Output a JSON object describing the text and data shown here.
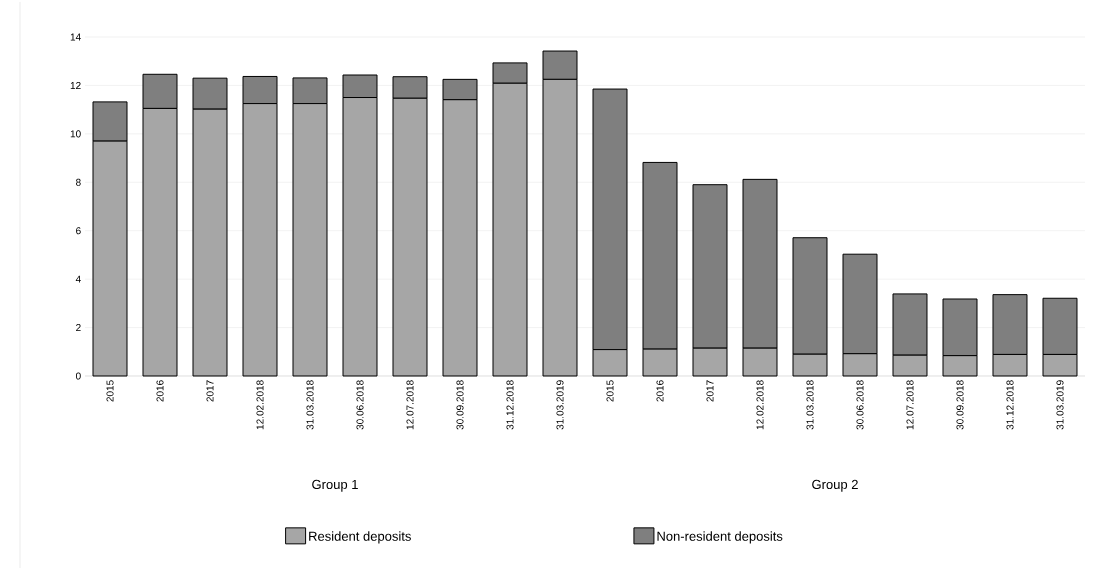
{
  "chart_data": {
    "type": "bar",
    "stacked": true,
    "categories": [
      "2015",
      "2016",
      "2017",
      "12.02.2018",
      "31.03.2018",
      "30.06.2018",
      "12.07.2018",
      "30.09.2018",
      "31.12.2018",
      "31.03.2019",
      "2015",
      "2016",
      "2017",
      "12.02.2018",
      "31.03.2018",
      "30.06.2018",
      "12.07.2018",
      "30.09.2018",
      "31.12.2018",
      "31.03.2019"
    ],
    "series": [
      {
        "name": "Resident deposits",
        "color": "#a6a6a6",
        "values": [
          9.7,
          11.05,
          11.02,
          11.25,
          11.25,
          11.5,
          11.47,
          11.41,
          12.09,
          12.25,
          1.09,
          1.11,
          1.15,
          1.15,
          0.9,
          0.92,
          0.86,
          0.84,
          0.89,
          0.89
        ]
      },
      {
        "name": "Non-resident deposits",
        "color": "#7f7f7f",
        "values": [
          1.62,
          1.41,
          1.28,
          1.12,
          1.06,
          0.93,
          0.89,
          0.84,
          0.84,
          1.17,
          10.76,
          7.71,
          6.75,
          6.97,
          4.81,
          4.11,
          2.53,
          2.34,
          2.47,
          2.32
        ]
      }
    ],
    "ylim": [
      0,
      14
    ],
    "yticks": [
      0,
      2,
      4,
      6,
      8,
      10,
      12,
      14
    ],
    "grid": "y",
    "legend": "bottom",
    "annotations": [
      "Group 1",
      "Group 2"
    ]
  }
}
